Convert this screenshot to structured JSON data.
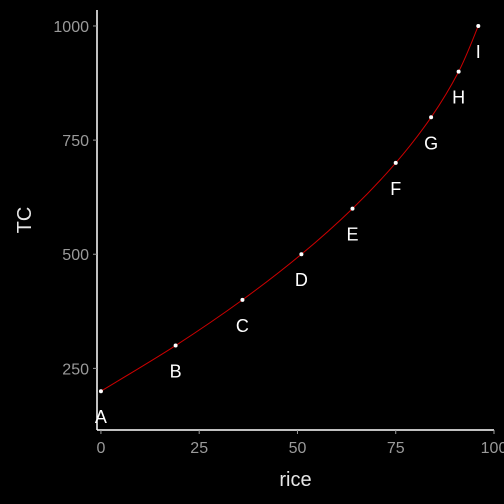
{
  "chart_data": {
    "type": "line",
    "title": "",
    "xlabel": "rice",
    "ylabel": "TC",
    "xlim": [
      -1,
      100
    ],
    "ylim": [
      115,
      1035
    ],
    "xticks": [
      0,
      25,
      50,
      75,
      100
    ],
    "yticks": [
      250,
      500,
      750,
      1000
    ],
    "grid": false,
    "legend": "none",
    "line_color": "#cc0000",
    "point_color": "#ffffff",
    "axis_color": "#ffffff",
    "background": "#000000",
    "points": [
      {
        "label": "A",
        "x": 0,
        "y": 200
      },
      {
        "label": "B",
        "x": 19,
        "y": 300
      },
      {
        "label": "C",
        "x": 36,
        "y": 400
      },
      {
        "label": "D",
        "x": 51,
        "y": 500
      },
      {
        "label": "E",
        "x": 64,
        "y": 600
      },
      {
        "label": "F",
        "x": 75,
        "y": 700
      },
      {
        "label": "G",
        "x": 84,
        "y": 800
      },
      {
        "label": "H",
        "x": 91,
        "y": 900
      },
      {
        "label": "I",
        "x": 96,
        "y": 1000
      }
    ]
  }
}
